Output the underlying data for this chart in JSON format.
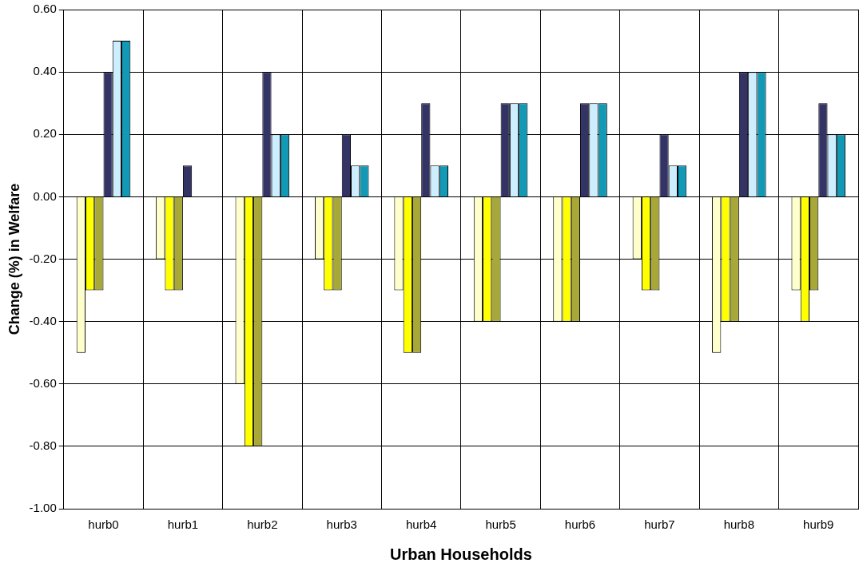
{
  "chart_data": {
    "type": "bar",
    "xlabel": "Urban Households",
    "ylabel": "Change (%) in Welfare",
    "categories": [
      "hurb0",
      "hurb1",
      "hurb2",
      "hurb3",
      "hurb4",
      "hurb5",
      "hurb6",
      "hurb7",
      "hurb8",
      "hurb9"
    ],
    "series": [
      {
        "color": "#ffffcc",
        "values": [
          -0.5,
          -0.2,
          -0.6,
          -0.2,
          -0.3,
          -0.4,
          -0.4,
          -0.2,
          -0.5,
          -0.3
        ]
      },
      {
        "color": "#ffff00",
        "values": [
          -0.3,
          -0.3,
          -0.8,
          -0.3,
          -0.5,
          -0.4,
          -0.4,
          -0.3,
          -0.4,
          -0.4
        ]
      },
      {
        "color": "#a8a838",
        "values": [
          -0.3,
          -0.3,
          -0.8,
          -0.3,
          -0.5,
          -0.4,
          -0.4,
          -0.3,
          -0.4,
          -0.3
        ]
      },
      {
        "color": "#333366",
        "values": [
          0.4,
          0.1,
          0.4,
          0.2,
          0.3,
          0.3,
          0.3,
          0.2,
          0.4,
          0.3
        ]
      },
      {
        "color": "#cceeff",
        "values": [
          0.5,
          0,
          0.2,
          0.1,
          0.1,
          0.3,
          0.3,
          0.1,
          0.4,
          0.2
        ]
      },
      {
        "color": "#1199b5",
        "values": [
          0.5,
          0,
          0.2,
          0.1,
          0.1,
          0.3,
          0.3,
          0.1,
          0.4,
          0.2
        ]
      }
    ],
    "ylim": [
      -1,
      0.6
    ],
    "yticks": [
      {
        "value": -1,
        "label": "-1.00"
      },
      {
        "value": -0.8,
        "label": "-0.80"
      },
      {
        "value": -0.6,
        "label": "-0.60"
      },
      {
        "value": -0.4,
        "label": "-0.40"
      },
      {
        "value": -0.2,
        "label": "-0.20"
      },
      {
        "value": 0,
        "label": "0.00"
      },
      {
        "value": 0.2,
        "label": "0.20"
      },
      {
        "value": 0.4,
        "label": "0.40"
      },
      {
        "value": 0.6,
        "label": "0.60"
      }
    ],
    "grid": true
  }
}
